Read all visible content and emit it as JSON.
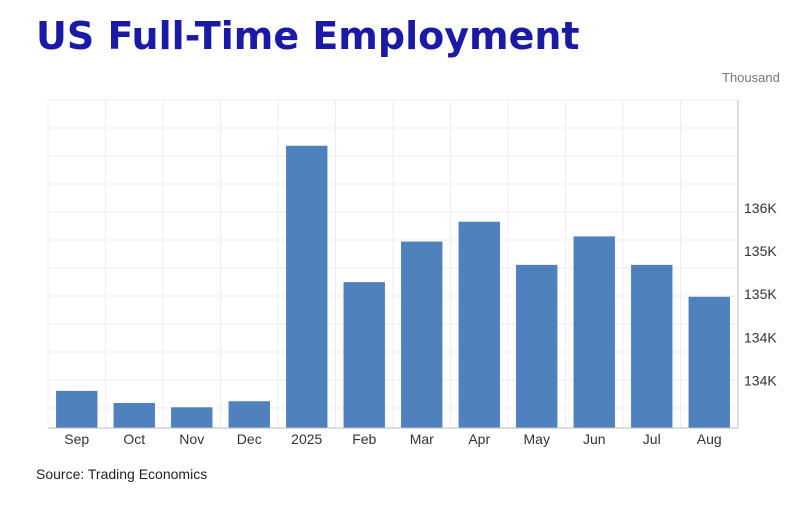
{
  "chart_data": {
    "type": "bar",
    "title": "US Full-Time Employment",
    "unit_label": "Thousand",
    "categories": [
      "Sep",
      "Oct",
      "Nov",
      "Dec",
      "2025",
      "Feb",
      "Mar",
      "Apr",
      "May",
      "Jun",
      "Jul",
      "Aug"
    ],
    "values": [
      133580,
      133440,
      133390,
      133460,
      136420,
      134840,
      135310,
      135540,
      135040,
      135370,
      135040,
      134670
    ],
    "y_ticks": [
      {
        "value": 133700,
        "label": "134K"
      },
      {
        "value": 134200,
        "label": "134K"
      },
      {
        "value": 134700,
        "label": "135K"
      },
      {
        "value": 135200,
        "label": "135K"
      },
      {
        "value": 135700,
        "label": "136K"
      }
    ],
    "ylim": [
      133150,
      136950
    ],
    "grid": true,
    "bar_color": "#4f81bd",
    "source": "Source: Trading Economics"
  }
}
